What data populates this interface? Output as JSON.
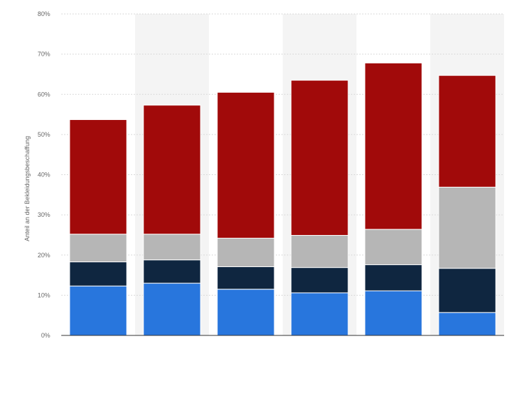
{
  "chart_data": {
    "type": "bar",
    "stacked": true,
    "categories": [
      "",
      "",
      "",
      "",
      "",
      ""
    ],
    "series": [
      {
        "color": "#2876dd",
        "values": [
          12.3,
          13.0,
          11.5,
          10.6,
          11.1,
          5.7
        ]
      },
      {
        "color": "#0f2640",
        "values": [
          6.0,
          5.8,
          5.6,
          6.3,
          6.5,
          11.0
        ]
      },
      {
        "color": "#b6b6b6",
        "values": [
          6.9,
          6.4,
          7.1,
          8.0,
          8.8,
          20.2
        ]
      },
      {
        "color": "#a10a0a",
        "values": [
          28.5,
          32.1,
          36.3,
          38.6,
          41.4,
          27.8
        ]
      }
    ],
    "yticks": [
      "0%",
      "10%",
      "20%",
      "30%",
      "40%",
      "50%",
      "60%",
      "70%",
      "80%"
    ],
    "ylabel": "Anteil an der Bekleidungsbeschaffung",
    "xlabel": "",
    "title": "",
    "ylim": [
      0,
      80
    ],
    "grid": true,
    "legend": "none"
  }
}
